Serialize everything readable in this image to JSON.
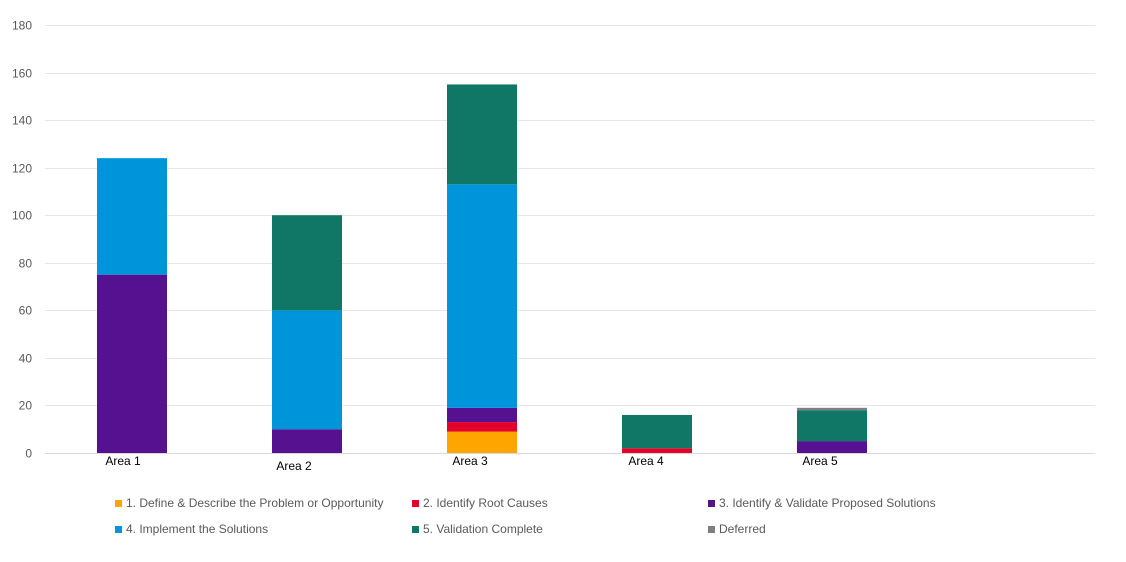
{
  "chart_data": {
    "type": "bar",
    "stacked": true,
    "title": "",
    "xlabel": "",
    "ylabel": "",
    "ylim": [
      0,
      180
    ],
    "yticks": [
      0,
      20,
      40,
      60,
      80,
      100,
      120,
      140,
      160,
      180
    ],
    "grid": true,
    "categories": [
      "Area 1",
      "Area 2",
      "Area 3",
      "Area 4",
      "Area 5"
    ],
    "legend_position": "bottom",
    "series": [
      {
        "name": "1. Define & Describe the Problem or Opportunity",
        "color": "#FFA500",
        "values": [
          0,
          0,
          9,
          0,
          0
        ]
      },
      {
        "name": "2. Identify Root Causes",
        "color": "#E3002A",
        "values": [
          0,
          0,
          4,
          2,
          0
        ]
      },
      {
        "name": "3. Identify & Validate Proposed Solutions",
        "color": "#55118F",
        "values": [
          75,
          10,
          6,
          0,
          5
        ]
      },
      {
        "name": "4. Implement the Solutions",
        "color": "#0095DA",
        "values": [
          49,
          50,
          94,
          0,
          0
        ]
      },
      {
        "name": "5. Validation Complete",
        "color": "#107665",
        "values": [
          0,
          40,
          42,
          14,
          13
        ]
      },
      {
        "name": "Deferred",
        "color": "#7F7F7F",
        "values": [
          0,
          0,
          0,
          0,
          1
        ]
      }
    ]
  }
}
